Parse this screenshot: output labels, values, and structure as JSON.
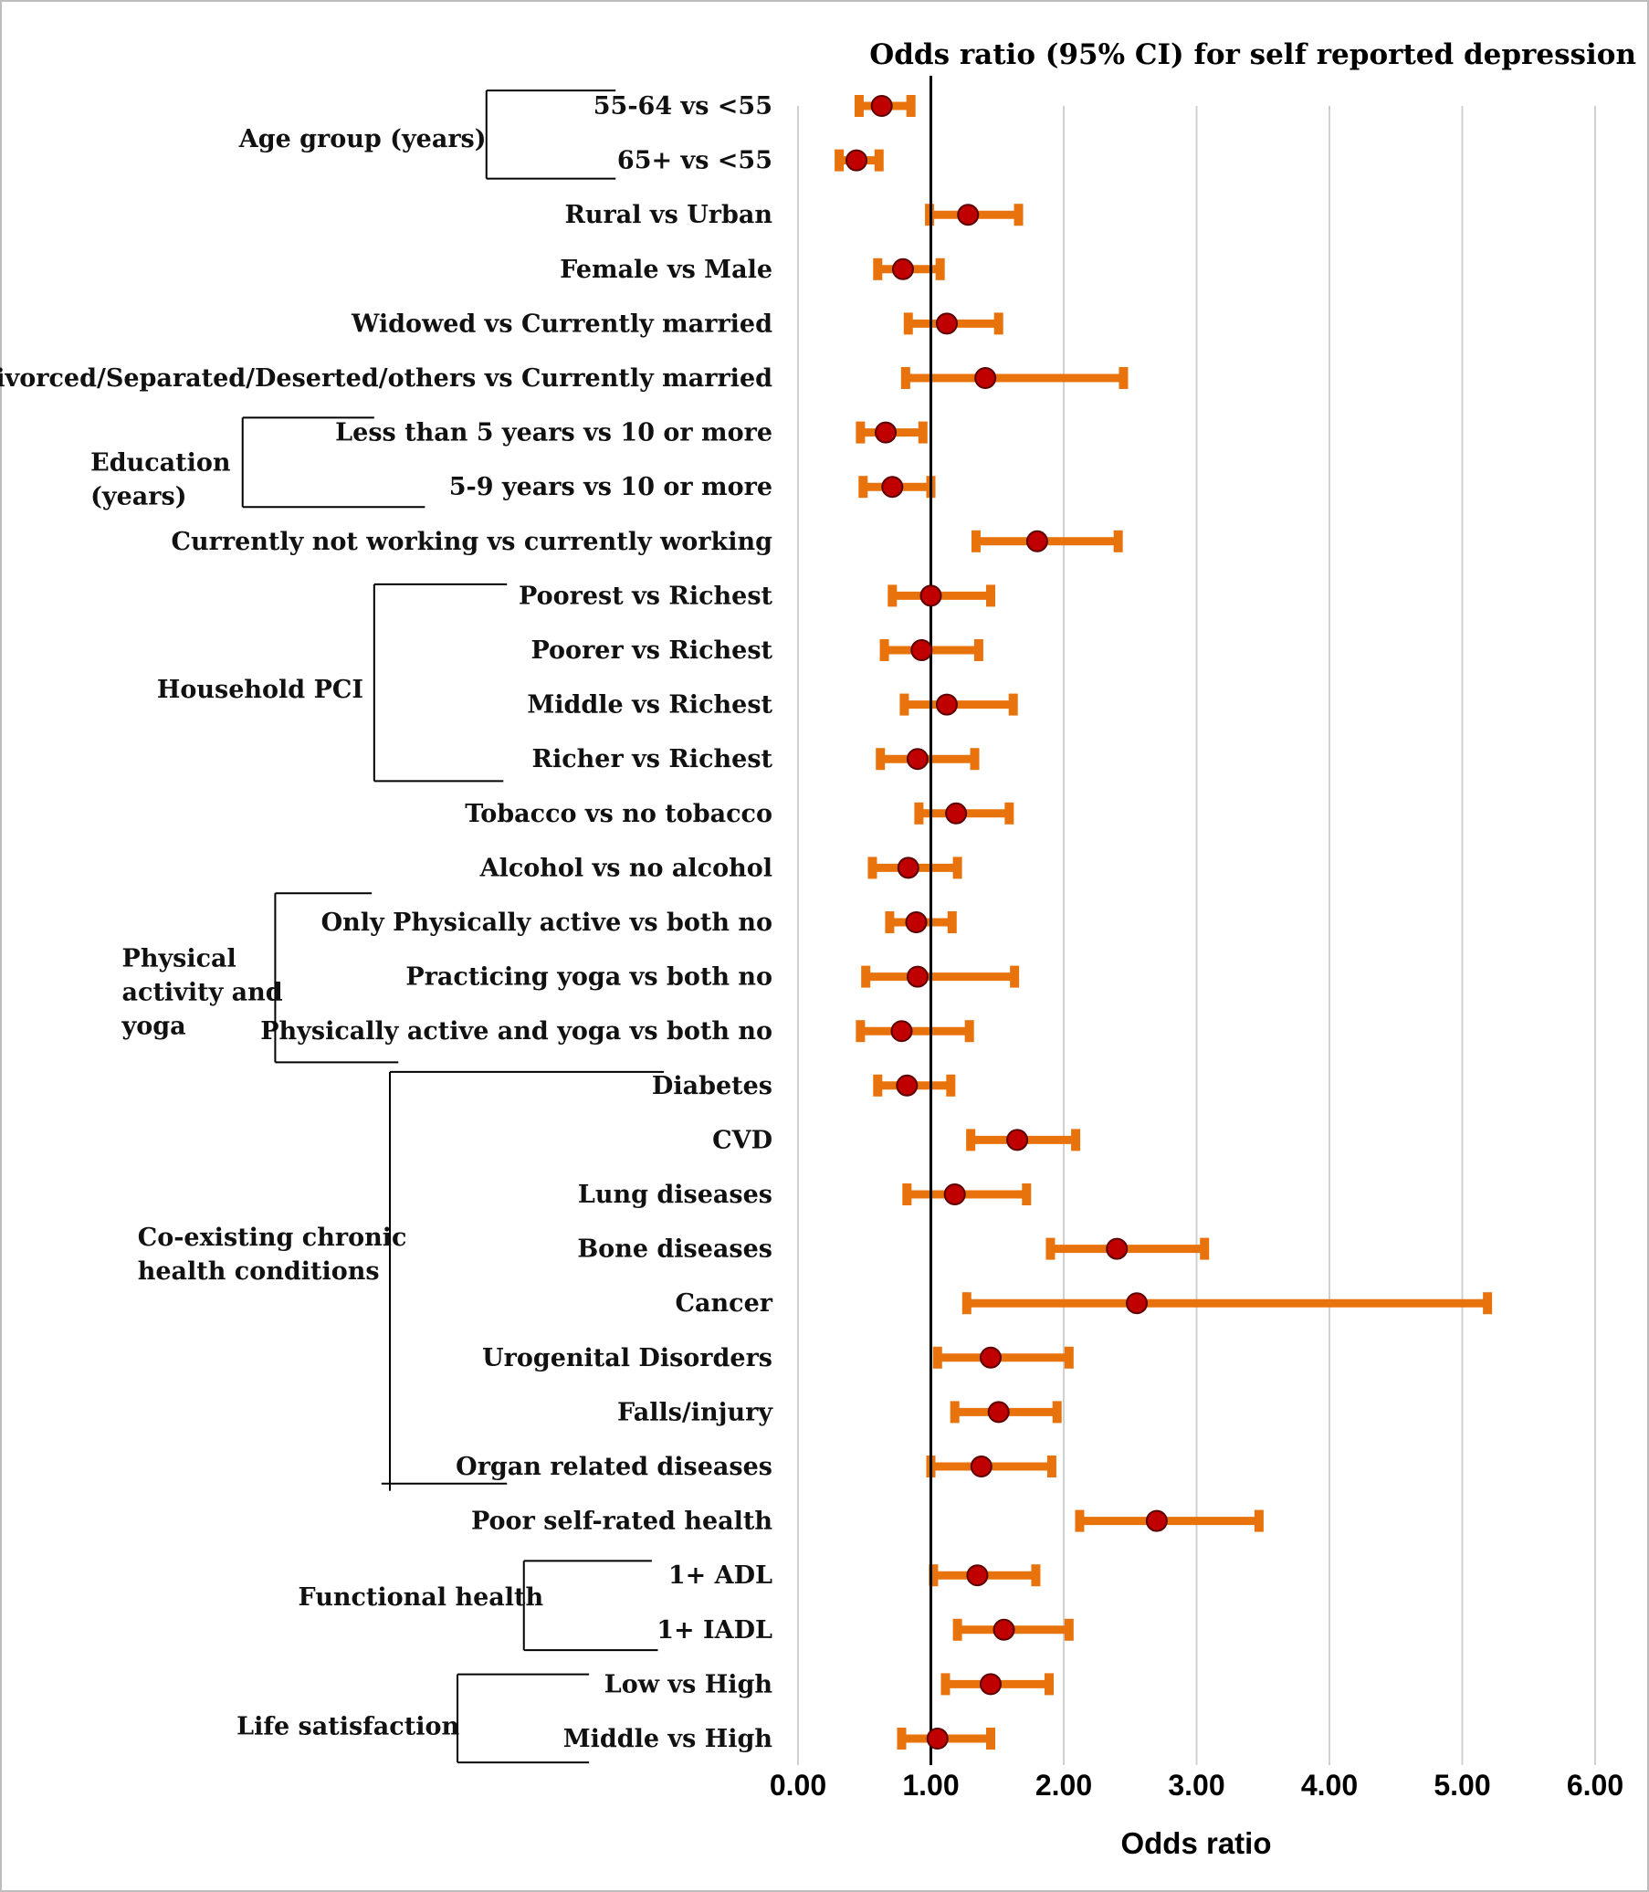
{
  "chart_data": {
    "type": "forest",
    "title": "Odds ratio (95% CI) for self reported depression",
    "xlabel": "Odds ratio",
    "xlim": [
      0,
      6
    ],
    "xticks": [
      "0.00",
      "1.00",
      "2.00",
      "3.00",
      "4.00",
      "5.00",
      "6.00"
    ],
    "reference_line": 1,
    "grid": "vertical",
    "colors": {
      "ci": "#E8720C",
      "point": "#C00000",
      "point_edge": "#5a0000",
      "grid": "#d0d0d0"
    },
    "rows": [
      {
        "label": "55-64 vs <55",
        "or": 0.63,
        "lo": 0.46,
        "hi": 0.85
      },
      {
        "label": "65+  vs  <55",
        "or": 0.44,
        "lo": 0.31,
        "hi": 0.61
      },
      {
        "label": "Rural vs Urban",
        "or": 1.28,
        "lo": 0.99,
        "hi": 1.66
      },
      {
        "label": "Female vs Male",
        "or": 0.79,
        "lo": 0.6,
        "hi": 1.07
      },
      {
        "label": "Widowed vs Currently married",
        "or": 1.12,
        "lo": 0.83,
        "hi": 1.51
      },
      {
        "label": "Divorced/Separated/Deserted/others vs Currently married",
        "or": 1.41,
        "lo": 0.81,
        "hi": 2.45
      },
      {
        "label": "Less than 5 years vs 10 or more",
        "or": 0.66,
        "lo": 0.47,
        "hi": 0.94
      },
      {
        "label": "5-9 years vs 10 or more",
        "or": 0.71,
        "lo": 0.49,
        "hi": 1.0
      },
      {
        "label": "Currently not working vs currently working",
        "or": 1.8,
        "lo": 1.34,
        "hi": 2.41
      },
      {
        "label": "Poorest  vs Richest",
        "or": 1.0,
        "lo": 0.71,
        "hi": 1.45
      },
      {
        "label": "Poorer  vs Richest",
        "or": 0.93,
        "lo": 0.65,
        "hi": 1.36
      },
      {
        "label": "Middle  vs Richest",
        "or": 1.12,
        "lo": 0.8,
        "hi": 1.62
      },
      {
        "label": "Richer  vs Richest",
        "or": 0.9,
        "lo": 0.62,
        "hi": 1.33
      },
      {
        "label": "Tobacco vs no tobacco",
        "or": 1.19,
        "lo": 0.91,
        "hi": 1.59
      },
      {
        "label": "Alcohol vs no alcohol",
        "or": 0.83,
        "lo": 0.56,
        "hi": 1.2
      },
      {
        "label": "Only Physically active vs both no",
        "or": 0.89,
        "lo": 0.69,
        "hi": 1.16
      },
      {
        "label": "Practicing yoga  vs both no",
        "or": 0.9,
        "lo": 0.51,
        "hi": 1.63
      },
      {
        "label": "Physically active and yoga  vs both no",
        "or": 0.78,
        "lo": 0.47,
        "hi": 1.29
      },
      {
        "label": "Diabetes",
        "or": 0.82,
        "lo": 0.6,
        "hi": 1.15
      },
      {
        "label": "CVD",
        "or": 1.65,
        "lo": 1.3,
        "hi": 2.09
      },
      {
        "label": "Lung diseases",
        "or": 1.18,
        "lo": 0.82,
        "hi": 1.72
      },
      {
        "label": "Bone diseases",
        "or": 2.4,
        "lo": 1.9,
        "hi": 3.06
      },
      {
        "label": "Cancer",
        "or": 2.55,
        "lo": 1.27,
        "hi": 5.19
      },
      {
        "label": "Urogenital Disorders",
        "or": 1.45,
        "lo": 1.05,
        "hi": 2.04
      },
      {
        "label": "Falls/injury ",
        "or": 1.51,
        "lo": 1.18,
        "hi": 1.95
      },
      {
        "label": "Organ related diseases",
        "or": 1.38,
        "lo": 1.0,
        "hi": 1.91
      },
      {
        "label": "Poor self-rated health",
        "or": 2.7,
        "lo": 2.12,
        "hi": 3.47
      },
      {
        "label": "1+ ADL",
        "or": 1.35,
        "lo": 1.02,
        "hi": 1.79
      },
      {
        "label": "1+ IADL",
        "or": 1.55,
        "lo": 1.2,
        "hi": 2.04
      },
      {
        "label": "Low vs High",
        "or": 1.45,
        "lo": 1.11,
        "hi": 1.89
      },
      {
        "label": "Middle vs High",
        "or": 1.05,
        "lo": 0.78,
        "hi": 1.45
      }
    ],
    "groups": [
      {
        "lines": [
          "Age group (years)"
        ]
      },
      {
        "lines": [
          "Education",
          "(years)"
        ]
      },
      {
        "lines": [
          "Household PCI"
        ]
      },
      {
        "lines": [
          "Physical",
          "activity and",
          "yoga"
        ]
      },
      {
        "lines": [
          "Co-existing chronic",
          "health conditions"
        ]
      },
      {
        "lines": [
          "Functional health"
        ]
      },
      {
        "lines": [
          "Life satisfaction"
        ]
      }
    ]
  }
}
